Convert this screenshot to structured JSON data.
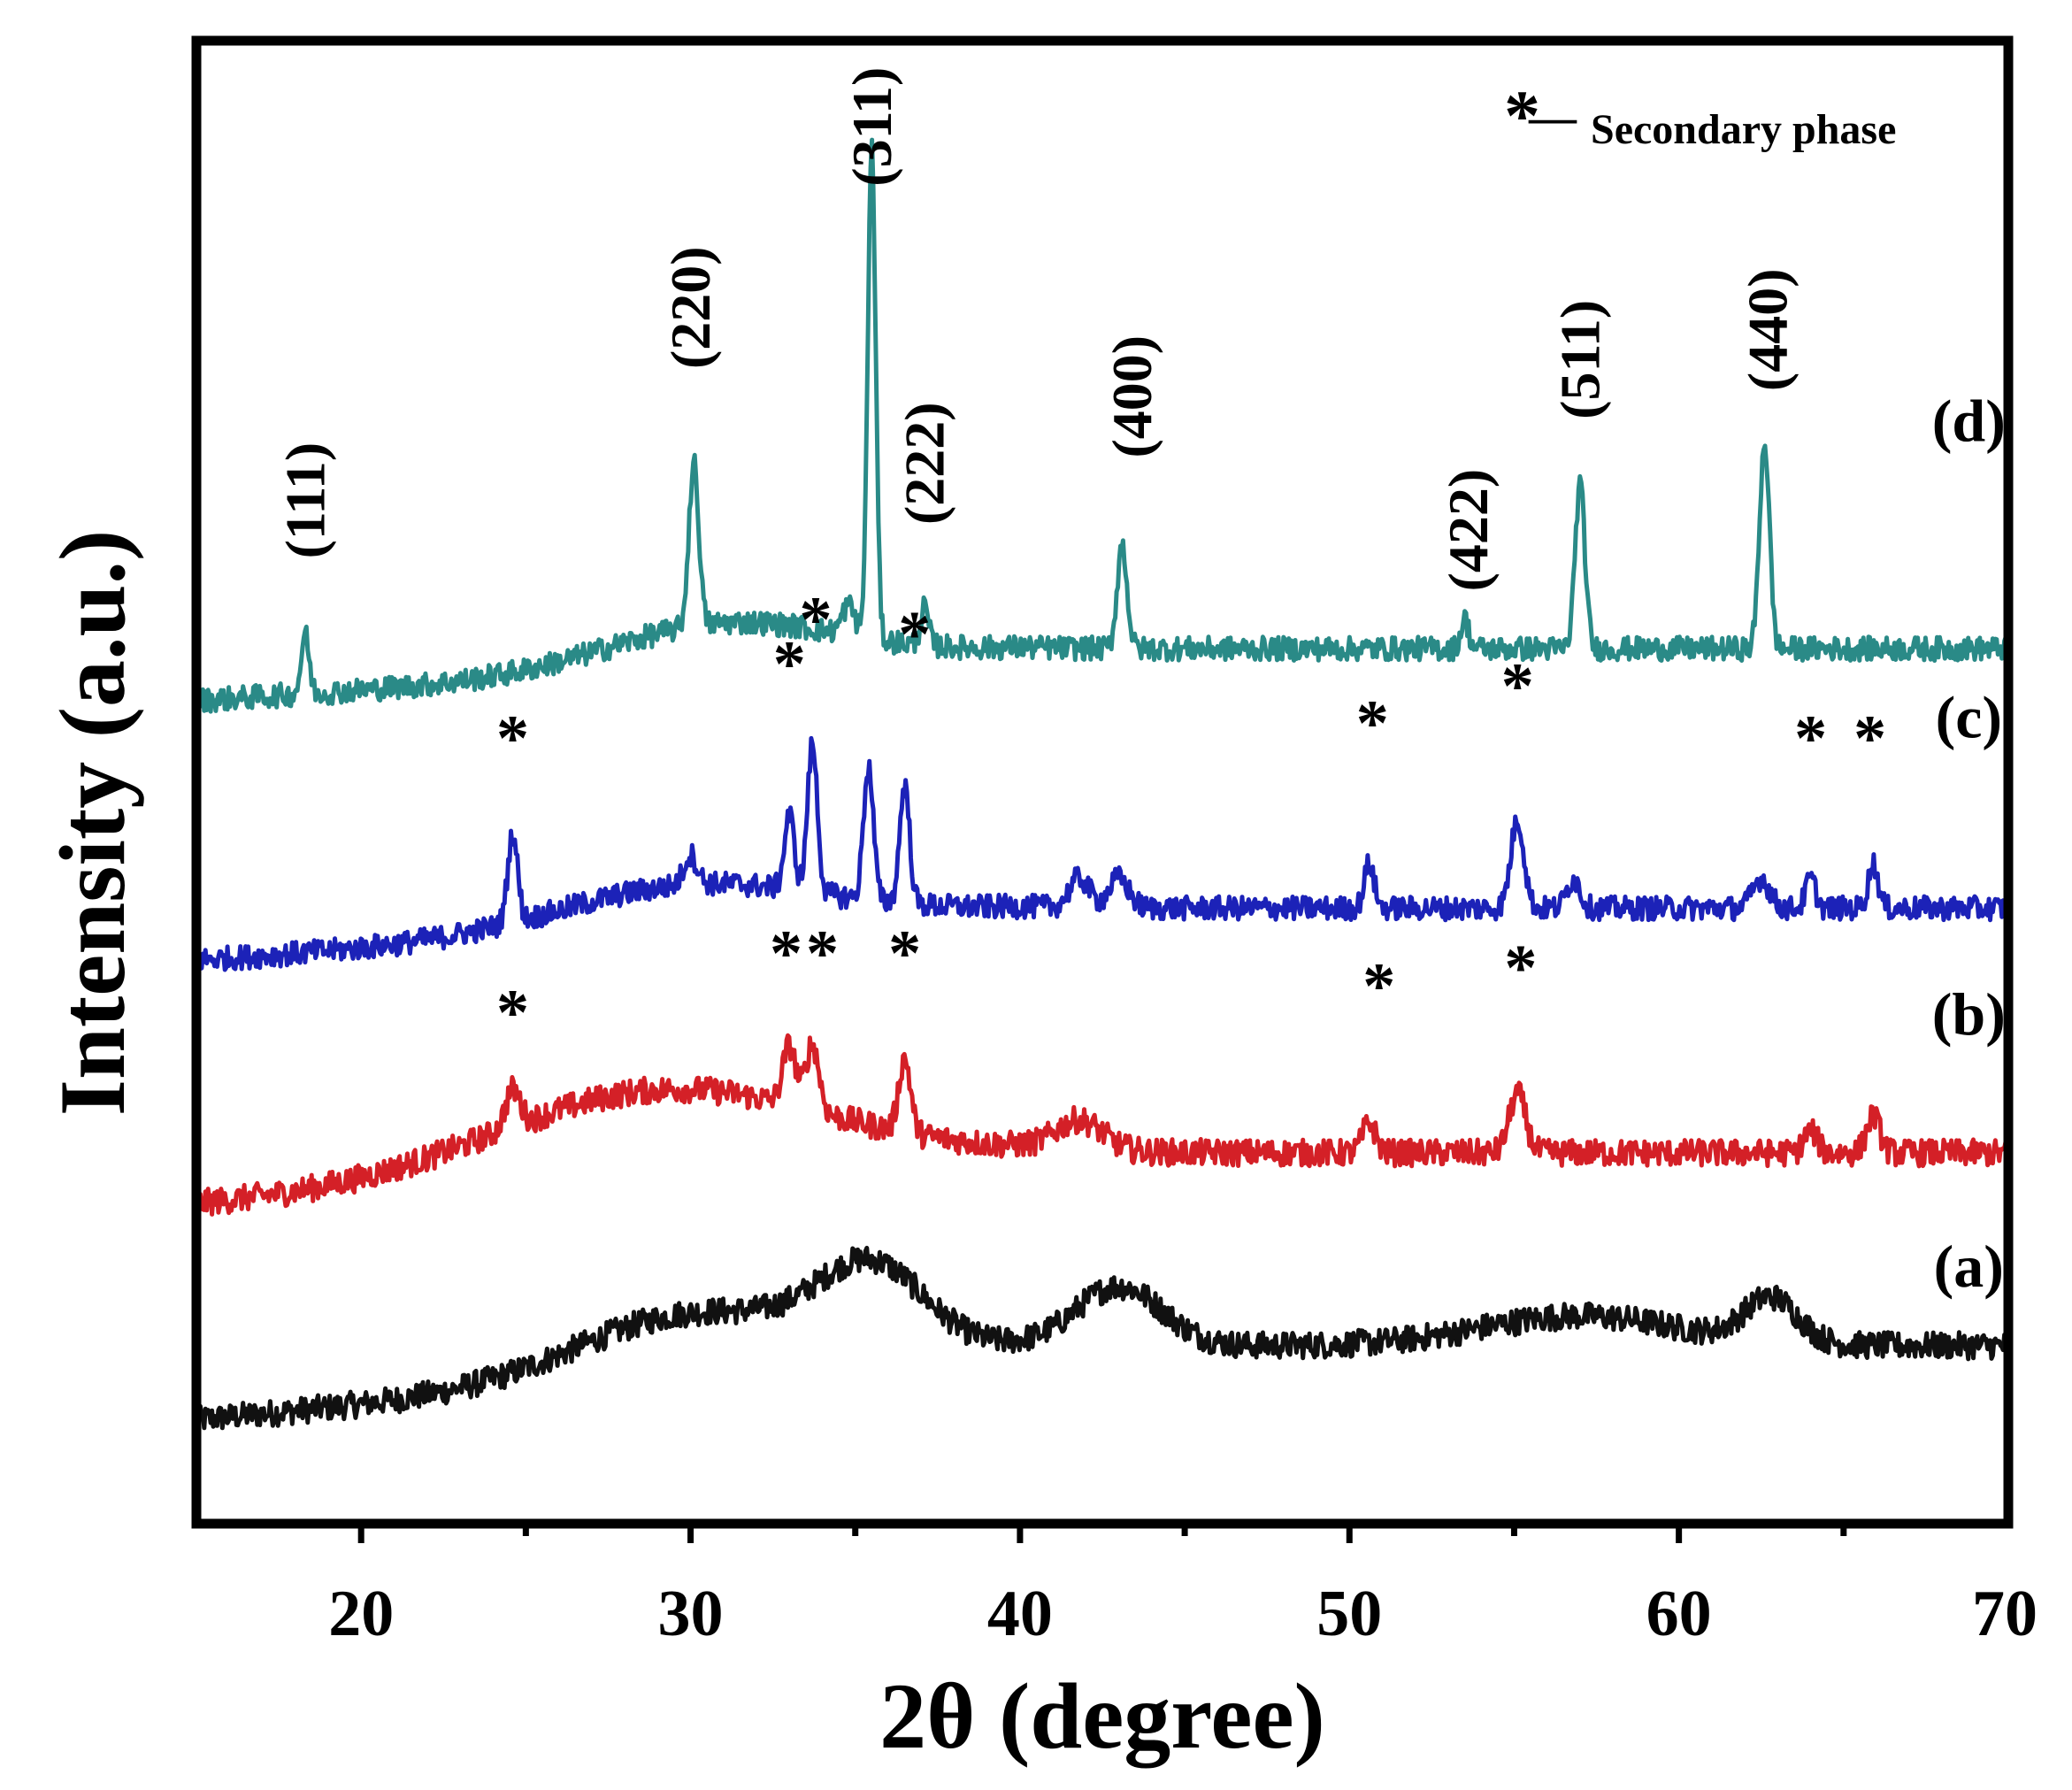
{
  "chart_data": {
    "type": "line",
    "title": "",
    "xlabel": "2θ (degree)",
    "ylabel": "Intensity (a.u.)",
    "xlim": [
      15,
      70
    ],
    "ylim": [
      0,
      100
    ],
    "xticks": [
      "20",
      "30",
      "40",
      "50",
      "60",
      "70"
    ],
    "xtick_values": [
      20,
      30,
      40,
      50,
      60,
      70
    ],
    "legend": {
      "symbol": "*",
      "dash": "—",
      "text": "Secondary phase",
      "position": "top-right"
    },
    "series": [
      {
        "name": "(a)",
        "color": "#111111",
        "baseline": [
          7,
          12
        ],
        "noise": 0.9,
        "peaks": [],
        "humps": [
          [
            30,
            4.2,
            3.5
          ],
          [
            35.5,
            5.5,
            1.6
          ],
          [
            43,
            4.0,
            1.3
          ],
          [
            57,
            2.0,
            3.0
          ],
          [
            62.8,
            3.0,
            0.8
          ]
        ],
        "label": "(a)",
        "label_x": 68.8,
        "label_y": 16
      },
      {
        "name": "(b)",
        "color": "#d42027",
        "baseline": [
          21.5,
          25
        ],
        "noise": 0.9,
        "peaks": [
          [
            24.6,
            2.5,
            0.22
          ],
          [
            33,
            4,
            0.2
          ],
          [
            33.7,
            4.5,
            0.2
          ],
          [
            36.5,
            5,
            0.18
          ],
          [
            50.6,
            2,
            0.2
          ],
          [
            55.1,
            4,
            0.25
          ],
          [
            64,
            1.5,
            0.2
          ],
          [
            65.9,
            2.5,
            0.2
          ]
        ],
        "humps": [
          [
            29,
            5.8,
            5
          ],
          [
            41.8,
            2,
            0.7
          ]
        ],
        "label": "(b)",
        "label_x": 68.8,
        "label_y": 33
      },
      {
        "name": "(c)",
        "color": "#1c22b8",
        "baseline": [
          38,
          41.5
        ],
        "noise": 0.8,
        "peaks": [
          [
            24.6,
            6,
            0.15
          ],
          [
            30,
            2,
            0.2
          ],
          [
            33,
            5,
            0.15
          ],
          [
            33.7,
            10,
            0.15
          ],
          [
            35.4,
            9,
            0.15
          ],
          [
            36.5,
            8,
            0.15
          ],
          [
            41.8,
            2,
            0.3
          ],
          [
            43,
            2,
            0.3
          ],
          [
            50.6,
            3,
            0.15
          ],
          [
            55.1,
            6,
            0.2
          ],
          [
            56.8,
            2,
            0.2
          ],
          [
            62.5,
            2,
            0.25
          ],
          [
            64,
            2,
            0.15
          ],
          [
            65.9,
            3,
            0.15
          ]
        ],
        "humps": [
          [
            30,
            3,
            4
          ]
        ],
        "label": "(c)",
        "label_x": 68.8,
        "label_y": 53
      },
      {
        "name": "(d)",
        "color": "#2a8a87",
        "baseline": [
          55.5,
          59
        ],
        "noise": 0.8,
        "peaks": [
          [
            18.3,
            4,
            0.12
          ],
          [
            30.1,
            11,
            0.15
          ],
          [
            34.8,
            2,
            0.2
          ],
          [
            35.5,
            33,
            0.12
          ],
          [
            37.1,
            2.5,
            0.12
          ],
          [
            43.1,
            7,
            0.15
          ],
          [
            53.5,
            2,
            0.12
          ],
          [
            57,
            11,
            0.15
          ],
          [
            62.6,
            14,
            0.15
          ]
        ],
        "humps": [
          [
            31,
            3,
            3.5
          ]
        ],
        "label": "(d)",
        "label_x": 68.8,
        "label_y": 73
      }
    ],
    "annotations": [
      {
        "text": "(111)",
        "x": 18.3,
        "y": 69,
        "rotate": true
      },
      {
        "text": "(220)",
        "x": 30.0,
        "y": 82,
        "rotate": true
      },
      {
        "text": "(311)",
        "x": 35.5,
        "y": 94.2,
        "rotate": true
      },
      {
        "text": "(222)",
        "x": 37.1,
        "y": 71.5,
        "rotate": true
      },
      {
        "text": "(400)",
        "x": 43.4,
        "y": 76,
        "rotate": true
      },
      {
        "text": "(422)",
        "x": 53.6,
        "y": 67,
        "rotate": true
      },
      {
        "text": "(511)",
        "x": 57.0,
        "y": 78.5,
        "rotate": true
      },
      {
        "text": "(440)",
        "x": 62.7,
        "y": 80.5,
        "rotate": true
      },
      {
        "text": "*",
        "x": 24.6,
        "y": 51.5,
        "rotate": false
      },
      {
        "text": "*",
        "x": 33.0,
        "y": 56.5,
        "rotate": false
      },
      {
        "text": "*",
        "x": 33.8,
        "y": 59.5,
        "rotate": false
      },
      {
        "text": "*",
        "x": 36.8,
        "y": 58.5,
        "rotate": false
      },
      {
        "text": "*",
        "x": 50.7,
        "y": 52.5,
        "rotate": false
      },
      {
        "text": "*",
        "x": 55.1,
        "y": 55,
        "rotate": false
      },
      {
        "text": "*",
        "x": 64.0,
        "y": 51.5,
        "rotate": false
      },
      {
        "text": "*",
        "x": 65.8,
        "y": 51.5,
        "rotate": false
      },
      {
        "text": "*",
        "x": 24.6,
        "y": 33,
        "rotate": false
      },
      {
        "text": "*",
        "x": 32.9,
        "y": 37,
        "rotate": false
      },
      {
        "text": "*",
        "x": 34.0,
        "y": 37,
        "rotate": false
      },
      {
        "text": "*",
        "x": 36.5,
        "y": 37,
        "rotate": false
      },
      {
        "text": "*",
        "x": 50.9,
        "y": 34.8,
        "rotate": false
      },
      {
        "text": "*",
        "x": 55.2,
        "y": 36,
        "rotate": false
      }
    ]
  }
}
